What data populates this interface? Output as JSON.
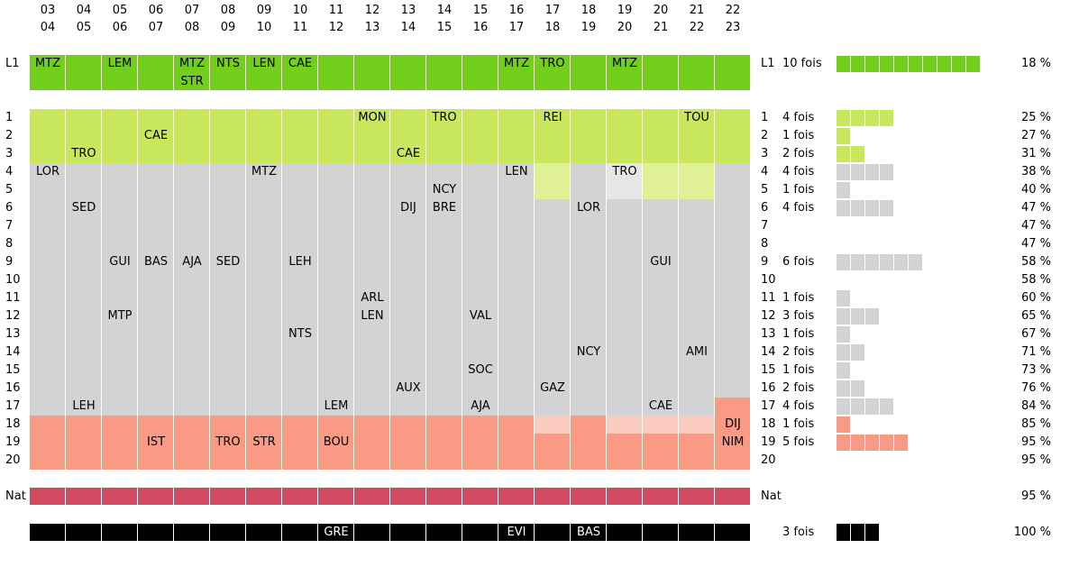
{
  "seasons": [
    {
      "start": "03",
      "end": "04"
    },
    {
      "start": "04",
      "end": "05"
    },
    {
      "start": "05",
      "end": "06"
    },
    {
      "start": "06",
      "end": "07"
    },
    {
      "start": "07",
      "end": "08"
    },
    {
      "start": "08",
      "end": "09"
    },
    {
      "start": "09",
      "end": "10"
    },
    {
      "start": "10",
      "end": "11"
    },
    {
      "start": "11",
      "end": "12"
    },
    {
      "start": "12",
      "end": "13"
    },
    {
      "start": "13",
      "end": "14"
    },
    {
      "start": "14",
      "end": "15"
    },
    {
      "start": "15",
      "end": "16"
    },
    {
      "start": "16",
      "end": "17"
    },
    {
      "start": "17",
      "end": "18"
    },
    {
      "start": "18",
      "end": "19"
    },
    {
      "start": "19",
      "end": "20"
    },
    {
      "start": "20",
      "end": "21"
    },
    {
      "start": "21",
      "end": "22"
    },
    {
      "start": "22",
      "end": "23"
    }
  ],
  "colors": {
    "l1": "#72d01c",
    "promo": "#c9e75c",
    "promo_light": "#dff095",
    "mid": "#d3d3d3",
    "mid_light": "#e6e6e6",
    "releg": "#f89a84",
    "releg_light": "#fbcbc0",
    "nat": "#d24a62",
    "bottom": "#000000"
  },
  "chart_data": {
    "type": "table",
    "title": "",
    "row_labels": [
      "1",
      "2",
      "3",
      "4",
      "5",
      "6",
      "7",
      "8",
      "9",
      "10",
      "11",
      "12",
      "13",
      "14",
      "15",
      "16",
      "17",
      "18",
      "19",
      "20"
    ],
    "l1_label": "L1",
    "nat_label": "Nat",
    "l1_summary": {
      "count_text": "10 fois",
      "count": 10,
      "pct": "18 %"
    },
    "place_summary": [
      {
        "place": "1",
        "count_text": "4 fois",
        "count": 4,
        "pct": "25 %"
      },
      {
        "place": "2",
        "count_text": "1 fois",
        "count": 1,
        "pct": "27 %"
      },
      {
        "place": "3",
        "count_text": "2 fois",
        "count": 2,
        "pct": "31 %"
      },
      {
        "place": "4",
        "count_text": "4 fois",
        "count": 4,
        "pct": "38 %"
      },
      {
        "place": "5",
        "count_text": "1 fois",
        "count": 1,
        "pct": "40 %"
      },
      {
        "place": "6",
        "count_text": "4 fois",
        "count": 4,
        "pct": "47 %"
      },
      {
        "place": "7",
        "count_text": "",
        "count": 0,
        "pct": "47 %"
      },
      {
        "place": "8",
        "count_text": "",
        "count": 0,
        "pct": "47 %"
      },
      {
        "place": "9",
        "count_text": "6 fois",
        "count": 6,
        "pct": "58 %"
      },
      {
        "place": "10",
        "count_text": "",
        "count": 0,
        "pct": "58 %"
      },
      {
        "place": "11",
        "count_text": "1 fois",
        "count": 1,
        "pct": "60 %"
      },
      {
        "place": "12",
        "count_text": "3 fois",
        "count": 3,
        "pct": "65 %"
      },
      {
        "place": "13",
        "count_text": "1 fois",
        "count": 1,
        "pct": "67 %"
      },
      {
        "place": "14",
        "count_text": "2 fois",
        "count": 2,
        "pct": "71 %"
      },
      {
        "place": "15",
        "count_text": "1 fois",
        "count": 1,
        "pct": "73 %"
      },
      {
        "place": "16",
        "count_text": "2 fois",
        "count": 2,
        "pct": "76 %"
      },
      {
        "place": "17",
        "count_text": "4 fois",
        "count": 4,
        "pct": "84 %"
      },
      {
        "place": "18",
        "count_text": "1 fois",
        "count": 1,
        "pct": "85 %"
      },
      {
        "place": "19",
        "count_text": "5 fois",
        "count": 5,
        "pct": "95 %"
      },
      {
        "place": "20",
        "count_text": "",
        "count": 0,
        "pct": "95 %"
      }
    ],
    "nat_summary": {
      "count_text": "",
      "pct": "95 %"
    },
    "bottom_summary": {
      "count_text": "3 fois",
      "count": 3,
      "pct": "100 %"
    },
    "zones": [
      {
        "seasons": [
          0,
          13
        ],
        "promo": [
          1,
          3
        ],
        "mid": [
          4,
          17
        ],
        "releg": [
          18,
          20
        ],
        "light_promo": [],
        "light_mid": [],
        "light_releg": []
      },
      {
        "seasons": [
          14,
          14
        ],
        "promo": [
          1,
          5
        ],
        "mid": [
          6,
          17
        ],
        "releg": [
          18,
          20
        ],
        "light_promo": [
          4,
          5
        ],
        "light_mid": [],
        "light_releg": [
          18,
          18
        ]
      },
      {
        "seasons": [
          15,
          15
        ],
        "promo": [
          1,
          3
        ],
        "mid": [
          4,
          17
        ],
        "releg": [
          18,
          20
        ],
        "light_promo": [],
        "light_mid": [],
        "light_releg": []
      },
      {
        "seasons": [
          16,
          16
        ],
        "promo": [
          1,
          3
        ],
        "mid": [
          4,
          17
        ],
        "releg": [
          18,
          20
        ],
        "light_promo": [],
        "light_mid": [
          4,
          5
        ],
        "light_releg": [
          18,
          18
        ]
      },
      {
        "seasons": [
          17,
          18
        ],
        "promo": [
          1,
          5
        ],
        "mid": [
          6,
          17
        ],
        "releg": [
          18,
          20
        ],
        "light_promo": [
          4,
          5
        ],
        "light_mid": [],
        "light_releg": [
          18,
          18
        ]
      },
      {
        "seasons": [
          19,
          19
        ],
        "promo": [
          1,
          3
        ],
        "mid": [
          4,
          16
        ],
        "releg": [
          17,
          20
        ],
        "light_promo": [],
        "light_mid": [],
        "light_releg": []
      }
    ],
    "l1_entries": [
      {
        "season": 0,
        "team": "MTZ"
      },
      {
        "season": 2,
        "team": "LEM"
      },
      {
        "season": 4,
        "team": "MTZ"
      },
      {
        "season": 4,
        "team": "STR",
        "line": 2
      },
      {
        "season": 5,
        "team": "NTS"
      },
      {
        "season": 6,
        "team": "LEN"
      },
      {
        "season": 7,
        "team": "CAE"
      },
      {
        "season": 13,
        "team": "MTZ"
      },
      {
        "season": 14,
        "team": "TRO"
      },
      {
        "season": 16,
        "team": "MTZ"
      }
    ],
    "entries": [
      {
        "season": 0,
        "place": 4,
        "team": "LOR"
      },
      {
        "season": 1,
        "place": 3,
        "team": "TRO"
      },
      {
        "season": 1,
        "place": 6,
        "team": "SED"
      },
      {
        "season": 1,
        "place": 17,
        "team": "LEH"
      },
      {
        "season": 2,
        "place": 9,
        "team": "GUI"
      },
      {
        "season": 2,
        "place": 12,
        "team": "MTP"
      },
      {
        "season": 3,
        "place": 2,
        "team": "CAE"
      },
      {
        "season": 3,
        "place": 9,
        "team": "BAS"
      },
      {
        "season": 3,
        "place": 19,
        "team": "IST"
      },
      {
        "season": 4,
        "place": 9,
        "team": "AJA"
      },
      {
        "season": 5,
        "place": 9,
        "team": "SED"
      },
      {
        "season": 5,
        "place": 19,
        "team": "TRO"
      },
      {
        "season": 6,
        "place": 4,
        "team": "MTZ"
      },
      {
        "season": 6,
        "place": 19,
        "team": "STR"
      },
      {
        "season": 7,
        "place": 9,
        "team": "LEH"
      },
      {
        "season": 7,
        "place": 13,
        "team": "NTS"
      },
      {
        "season": 8,
        "place": 17,
        "team": "LEM"
      },
      {
        "season": 8,
        "place": 19,
        "team": "BOU"
      },
      {
        "season": 9,
        "place": 1,
        "team": "MON"
      },
      {
        "season": 9,
        "place": 11,
        "team": "ARL"
      },
      {
        "season": 9,
        "place": 12,
        "team": "LEN"
      },
      {
        "season": 10,
        "place": 3,
        "team": "CAE"
      },
      {
        "season": 10,
        "place": 6,
        "team": "DIJ"
      },
      {
        "season": 10,
        "place": 16,
        "team": "AUX"
      },
      {
        "season": 11,
        "place": 1,
        "team": "TRO"
      },
      {
        "season": 11,
        "place": 5,
        "team": "NCY"
      },
      {
        "season": 11,
        "place": 6,
        "team": "BRE"
      },
      {
        "season": 12,
        "place": 12,
        "team": "VAL"
      },
      {
        "season": 12,
        "place": 15,
        "team": "SOC"
      },
      {
        "season": 12,
        "place": 17,
        "team": "AJA"
      },
      {
        "season": 13,
        "place": 4,
        "team": "LEN"
      },
      {
        "season": 14,
        "place": 1,
        "team": "REI"
      },
      {
        "season": 14,
        "place": 16,
        "team": "GAZ"
      },
      {
        "season": 15,
        "place": 6,
        "team": "LOR"
      },
      {
        "season": 15,
        "place": 14,
        "team": "NCY"
      },
      {
        "season": 16,
        "place": 4,
        "team": "TRO"
      },
      {
        "season": 17,
        "place": 9,
        "team": "GUI"
      },
      {
        "season": 17,
        "place": 17,
        "team": "CAE"
      },
      {
        "season": 18,
        "place": 1,
        "team": "TOU"
      },
      {
        "season": 18,
        "place": 14,
        "team": "AMI"
      },
      {
        "season": 19,
        "place": 18,
        "team": "DIJ"
      },
      {
        "season": 19,
        "place": 19,
        "team": "NIM"
      }
    ],
    "bottom_entries": [
      {
        "season": 8,
        "team": "GRE"
      },
      {
        "season": 13,
        "team": "EVI"
      },
      {
        "season": 15,
        "team": "BAS"
      }
    ]
  }
}
